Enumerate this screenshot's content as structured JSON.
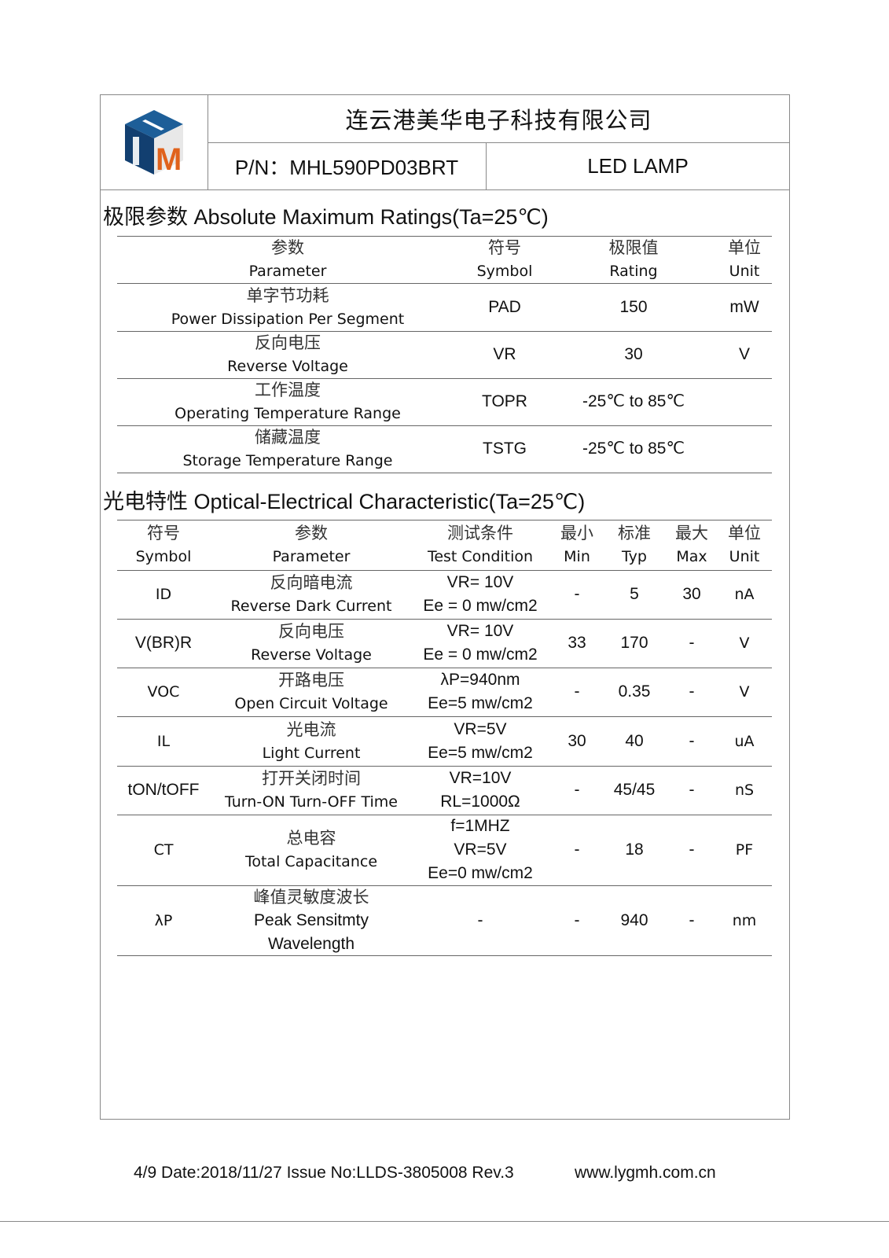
{
  "header": {
    "logo_letters": "HM",
    "company": "连云港美华电子科技有限公司",
    "part_number": "P/N：MHL590PD03BRT",
    "product_type": "LED LAMP",
    "colors": {
      "logo_blue": "#1d5e98",
      "logo_dark_blue": "#123f70",
      "logo_orange": "#e0621c"
    }
  },
  "abs_max": {
    "title": "极限参数 Absolute Maximum Ratings(Ta=25℃)",
    "headers": [
      {
        "zh": "参数",
        "en": "Parameter"
      },
      {
        "zh": "符号",
        "en": "Symbol"
      },
      {
        "zh": "极限值",
        "en": "Rating"
      },
      {
        "zh": "单位",
        "en": "Unit"
      }
    ],
    "rows": [
      {
        "zh": "单字节功耗",
        "en": "Power Dissipation Per Segment",
        "symbol": "PAD",
        "rating": "150",
        "unit": "mW"
      },
      {
        "zh": "反向电压",
        "en": "Reverse Voltage",
        "symbol": "VR",
        "rating": "30",
        "unit": "V"
      },
      {
        "zh": "工作温度",
        "en": "Operating Temperature Range",
        "symbol": "TOPR",
        "rating": "-25℃  to    85℃",
        "unit": ""
      },
      {
        "zh": "储藏温度",
        "en": "Storage Temperature Range",
        "symbol": "TSTG",
        "rating": "-25℃  to    85℃",
        "unit": ""
      }
    ]
  },
  "opt_elec": {
    "title": "光电特性 Optical-Electrical Characteristic(Ta=25℃)",
    "headers": [
      {
        "zh": "符号",
        "en": "Symbol"
      },
      {
        "zh": "参数",
        "en": "Parameter"
      },
      {
        "zh": "测试条件",
        "en": "Test Condition"
      },
      {
        "zh": "最小",
        "en": "Min"
      },
      {
        "zh": "标准",
        "en": "Typ"
      },
      {
        "zh": "最大",
        "en": "Max"
      },
      {
        "zh": "单位",
        "en": "Unit"
      }
    ],
    "rows": [
      {
        "symbol": "ID",
        "zh": "反向暗电流",
        "en": "Reverse Dark Current",
        "cond": [
          "VR= 10V",
          "Ee = 0 mw/cm2"
        ],
        "min": "-",
        "typ": "5",
        "max": "30",
        "unit": "nA"
      },
      {
        "symbol": "V(BR)R",
        "zh": "反向电压",
        "en": "Reverse Voltage",
        "cond": [
          "VR= 10V",
          "Ee = 0 mw/cm2"
        ],
        "min": "33",
        "typ": "170",
        "max": "-",
        "unit": "V"
      },
      {
        "symbol": "VOC",
        "zh": "开路电压",
        "en": "Open Circuit Voltage",
        "cond": [
          "λP=940nm",
          "Ee=5 mw/cm2"
        ],
        "min": "-",
        "typ": "0.35",
        "max": "-",
        "unit": "V"
      },
      {
        "symbol": "IL",
        "zh": "光电流",
        "en": "Light Current",
        "cond": [
          "VR=5V",
          "Ee=5 mw/cm2"
        ],
        "min": "30",
        "typ": "40",
        "max": "-",
        "unit": "uA"
      },
      {
        "symbol": "tON/tOFF",
        "zh": "打开关闭时间",
        "en": "Turn-ON Turn-OFF Time",
        "cond": [
          "VR=10V",
          "RL=1000Ω"
        ],
        "min": "-",
        "typ": "45/45",
        "max": "-",
        "unit": "nS"
      },
      {
        "symbol": "CT",
        "zh": "总电容",
        "en": "Total Capacitance",
        "cond": [
          "f=1MHZ",
          "VR=5V",
          "Ee=0 mw/cm2"
        ],
        "min": "-",
        "typ": "18",
        "max": "-",
        "unit": "PF"
      },
      {
        "symbol": "λP",
        "zh": "峰值灵敏度波长",
        "en": "Peak Sensitmty Wavelength",
        "cond": [
          "-"
        ],
        "min": "-",
        "typ": "940",
        "max": "-",
        "unit": "nm"
      }
    ]
  },
  "footer": {
    "info": "4/9 Date:2018/11/27 Issue No:LLDS-3805008 Rev.3",
    "website": "www.lygmh.com.cn"
  }
}
